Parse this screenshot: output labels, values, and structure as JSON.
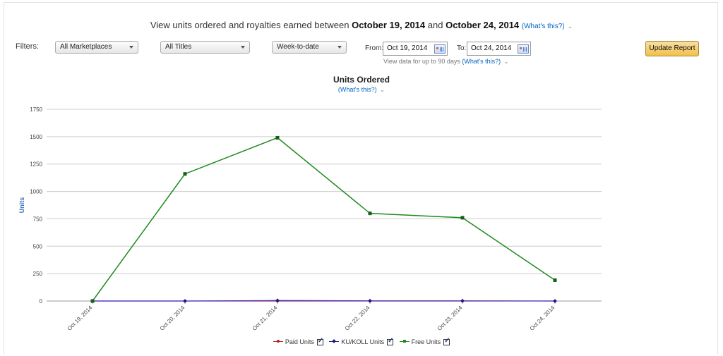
{
  "header": {
    "prefix": "View units ordered and royalties earned between",
    "start_date": "October 19, 2014",
    "and": "and",
    "end_date": "October 24, 2014",
    "whats_this": "(What's this?)"
  },
  "filters": {
    "label": "Filters:",
    "marketplace": "All Marketplaces",
    "titles": "All Titles",
    "period": "Week-to-date",
    "from_label": "From:",
    "from_value": "Oct 19, 2014",
    "to_label": "To:",
    "to_value": "Oct 24, 2014",
    "range_note": "View data for up to 90 days",
    "range_whats_this": "(What's this?)"
  },
  "update_button": "Update Report",
  "chart_header": {
    "title": "Units Ordered",
    "whats_this": "(What's this?)"
  },
  "legend": {
    "paid": "Paid Units",
    "ku": "KU/KOLL Units",
    "free": "Free Units"
  },
  "colors": {
    "paid": "#b22222",
    "ku": "#1f1fb4",
    "free": "#1f8a1f",
    "link": "#0066c0",
    "button": "#f0c14b"
  },
  "chart_data": {
    "type": "line",
    "title": "Units Ordered",
    "ylabel": "Units",
    "xlabel": "",
    "ylim": [
      0,
      1750
    ],
    "yticks": [
      "0",
      "250",
      "500",
      "750",
      "1000",
      "1250",
      "1500",
      "1750"
    ],
    "categories": [
      "Oct 19, 2014",
      "Oct 20, 2014",
      "Oct 21, 2014",
      "Oct 22, 2014",
      "Oct 23, 2014",
      "Oct 24, 2014"
    ],
    "grid": true,
    "legend_position": "bottom",
    "series": [
      {
        "name": "Paid Units",
        "values": [
          0,
          0,
          0,
          0,
          0,
          0
        ]
      },
      {
        "name": "KU/KOLL Units",
        "values": [
          0,
          0,
          5,
          2,
          2,
          0
        ]
      },
      {
        "name": "Free Units",
        "values": [
          0,
          1160,
          1490,
          800,
          760,
          190
        ]
      }
    ]
  }
}
